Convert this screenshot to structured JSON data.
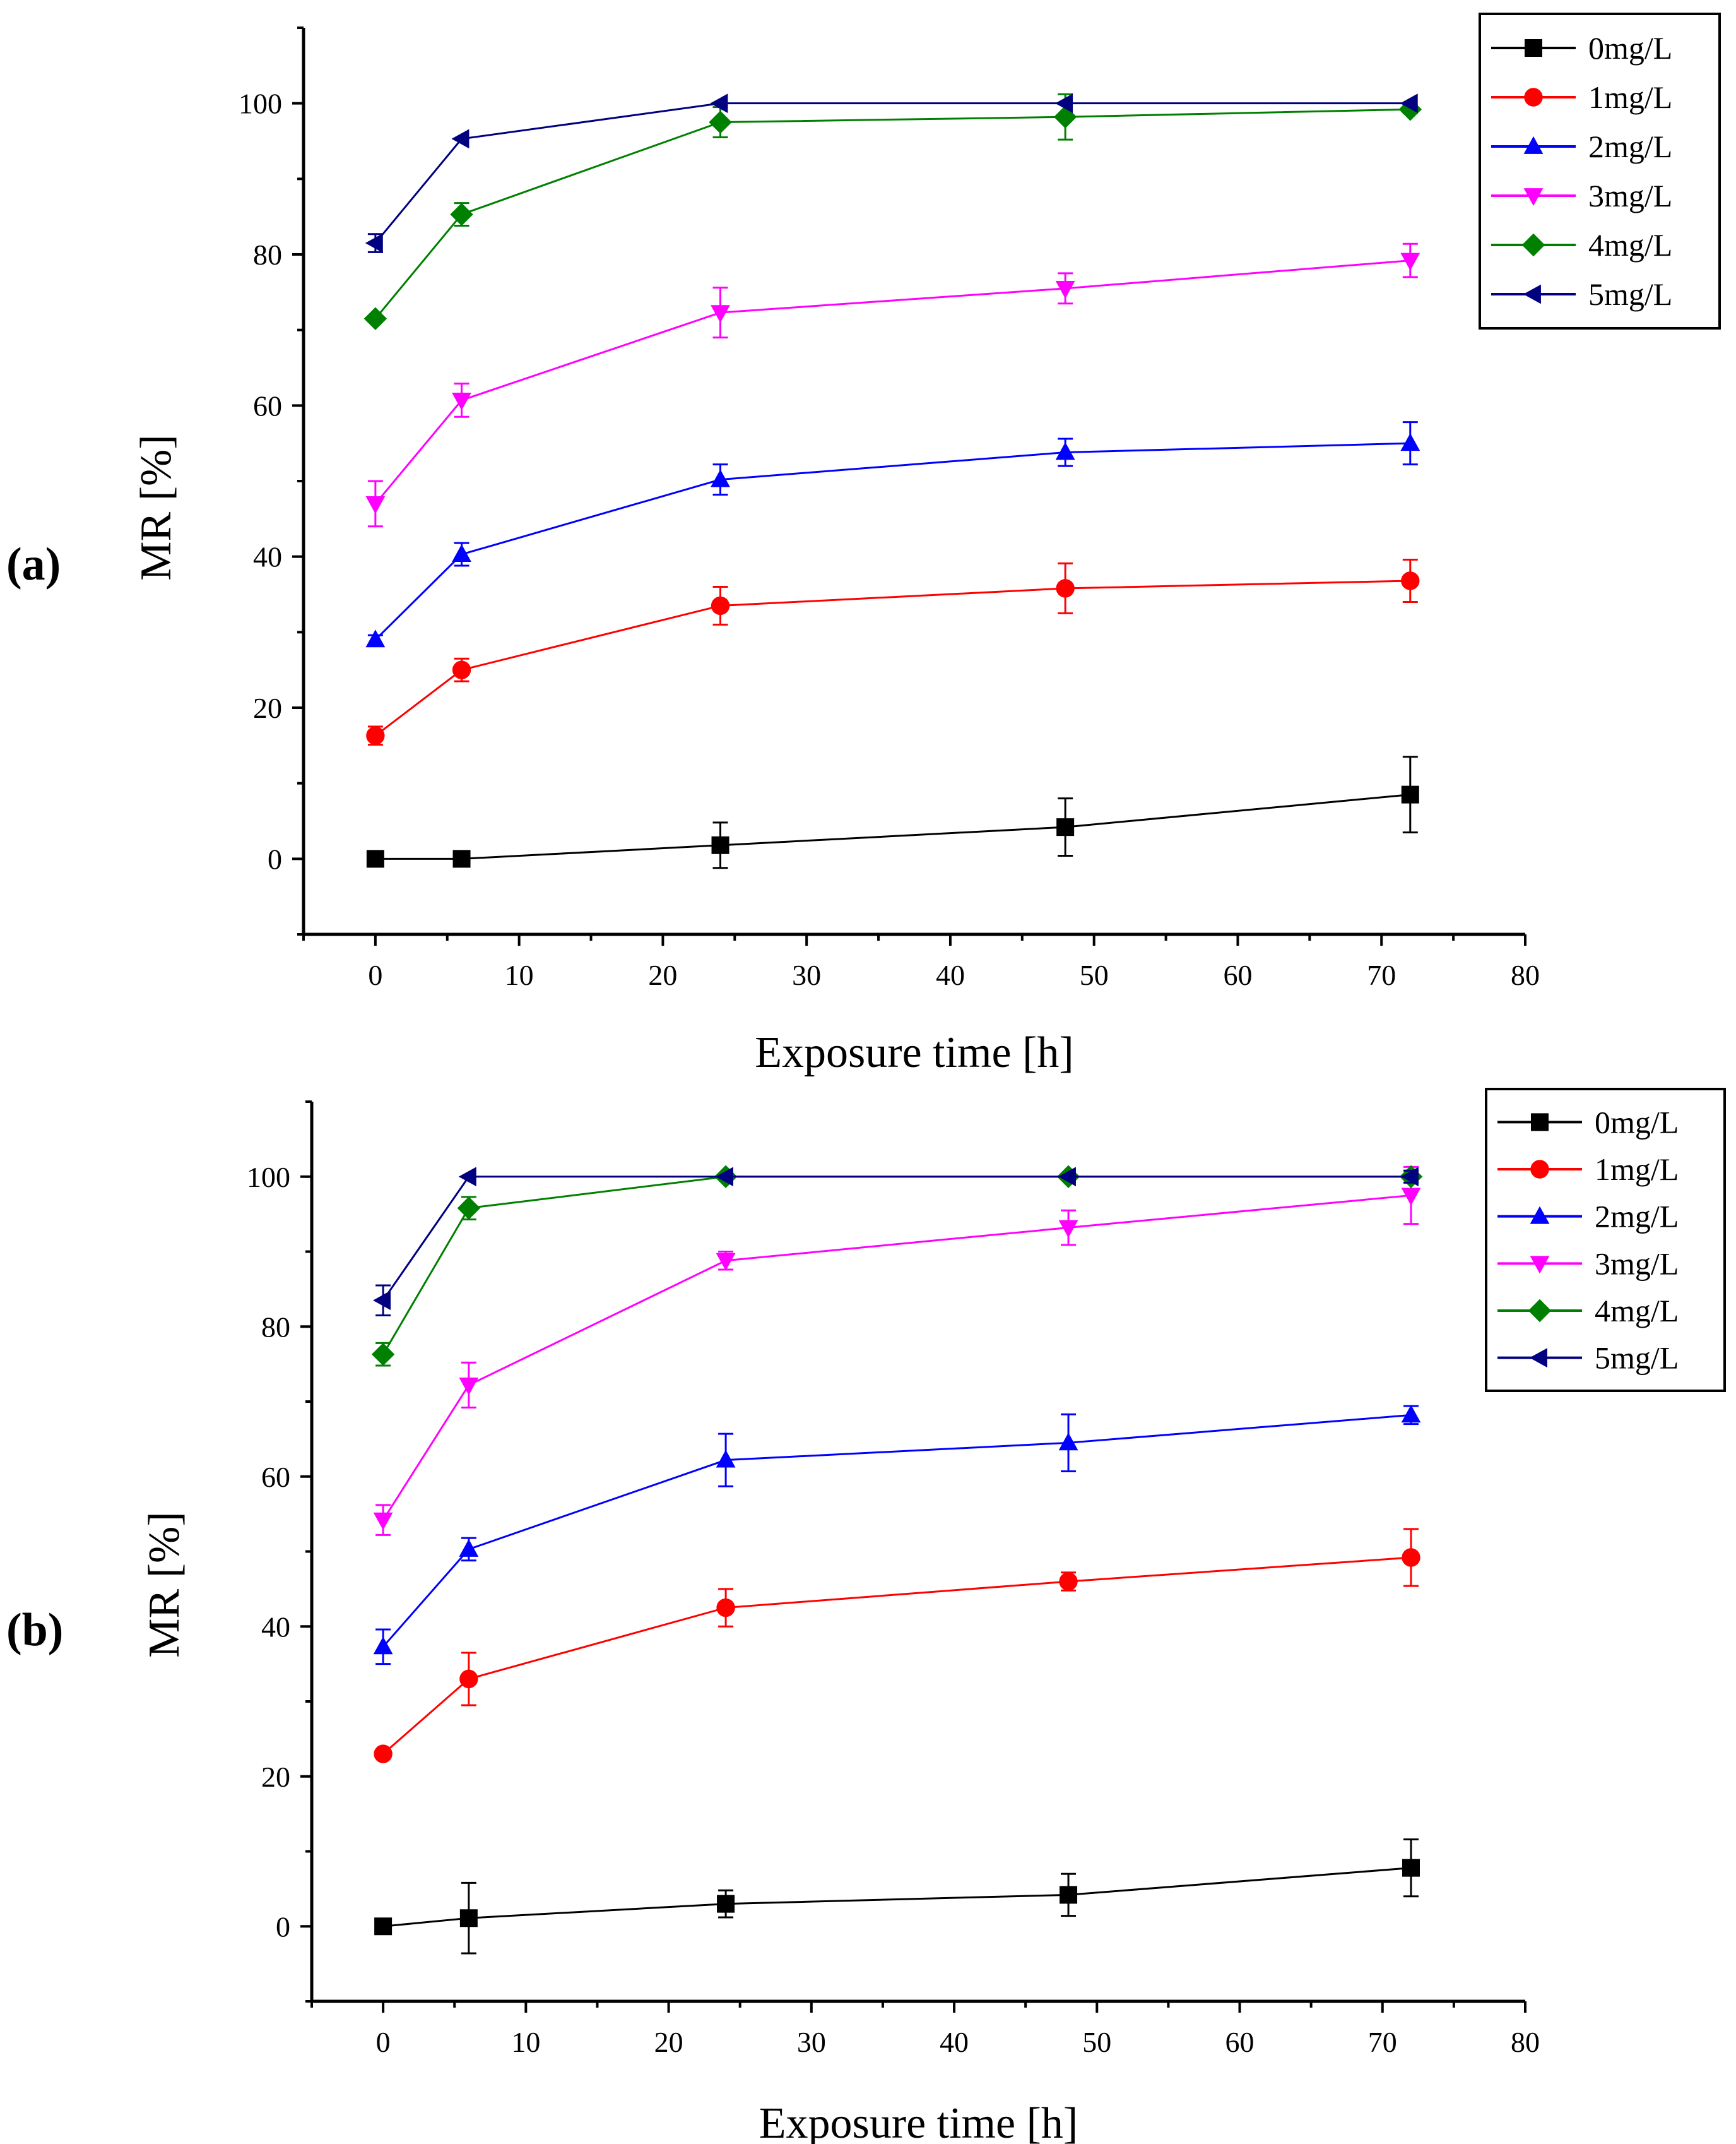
{
  "colors": {
    "axis": "#000000",
    "series": [
      "#000000",
      "#ff0000",
      "#0000ff",
      "#ff00ff",
      "#008000",
      "#000080"
    ]
  },
  "chart_data": [
    {
      "panel_label": "(a)",
      "type": "line",
      "xlabel": "Exposure time [h]",
      "ylabel": "MR [%]",
      "xlim": [
        -5,
        80
      ],
      "ylim": [
        -10,
        110
      ],
      "xticks": [
        0,
        10,
        20,
        30,
        40,
        50,
        60,
        70,
        80
      ],
      "yticks": [
        0,
        20,
        40,
        60,
        80,
        100
      ],
      "legend_position": "top-right",
      "x": [
        0,
        6,
        24,
        48,
        72
      ],
      "series": [
        {
          "name": "0mg/L",
          "marker": "square",
          "values": [
            0,
            0,
            1.8,
            4.2,
            8.5
          ],
          "errors": [
            0,
            0,
            3.0,
            3.8,
            5.0
          ]
        },
        {
          "name": "1mg/L",
          "marker": "circle",
          "values": [
            16.3,
            25,
            33.5,
            35.8,
            36.8
          ],
          "errors": [
            1.2,
            1.5,
            2.5,
            3.3,
            2.8
          ]
        },
        {
          "name": "2mg/L",
          "marker": "triangle-up",
          "values": [
            29,
            40.3,
            50.2,
            53.8,
            55
          ],
          "errors": [
            0.6,
            1.5,
            2.0,
            1.8,
            2.8
          ]
        },
        {
          "name": "3mg/L",
          "marker": "triangle-down",
          "values": [
            47,
            60.7,
            72.3,
            75.5,
            79.2
          ],
          "errors": [
            3.0,
            2.2,
            3.3,
            2.0,
            2.2
          ]
        },
        {
          "name": "4mg/L",
          "marker": "diamond",
          "values": [
            71.5,
            85.3,
            97.5,
            98.2,
            99.2
          ],
          "errors": [
            0,
            1.5,
            2.0,
            3.0,
            0.5
          ]
        },
        {
          "name": "5mg/L",
          "marker": "triangle-left",
          "values": [
            81.5,
            95.3,
            100,
            100,
            100
          ],
          "errors": [
            1.2,
            0,
            0,
            0,
            0
          ]
        }
      ]
    },
    {
      "panel_label": "(b)",
      "type": "line",
      "xlabel": "Exposure time [h]",
      "ylabel": "MR [%]",
      "xlim": [
        -5,
        80
      ],
      "ylim": [
        -10,
        110
      ],
      "xticks": [
        0,
        10,
        20,
        30,
        40,
        50,
        60,
        70,
        80
      ],
      "yticks": [
        0,
        20,
        40,
        60,
        80,
        100
      ],
      "legend_position": "top-right",
      "x": [
        0,
        6,
        24,
        48,
        72
      ],
      "series": [
        {
          "name": "0mg/L",
          "marker": "square",
          "values": [
            0,
            1.1,
            3,
            4.2,
            7.8
          ],
          "errors": [
            0,
            4.7,
            1.8,
            2.8,
            3.8
          ]
        },
        {
          "name": "1mg/L",
          "marker": "circle",
          "values": [
            23,
            33,
            42.5,
            46,
            49.2
          ],
          "errors": [
            0,
            3.5,
            2.5,
            1.2,
            3.8
          ]
        },
        {
          "name": "2mg/L",
          "marker": "triangle-up",
          "values": [
            37.3,
            50.3,
            62.2,
            64.5,
            68.2
          ],
          "errors": [
            2.3,
            1.5,
            3.5,
            3.8,
            1.2
          ]
        },
        {
          "name": "3mg/L",
          "marker": "triangle-down",
          "values": [
            54.2,
            72.2,
            88.8,
            93.2,
            97.5
          ],
          "errors": [
            2.0,
            3.0,
            1.2,
            2.3,
            3.8
          ]
        },
        {
          "name": "4mg/L",
          "marker": "diamond",
          "values": [
            76.3,
            95.8,
            100,
            100,
            100
          ],
          "errors": [
            1.5,
            1.5,
            0,
            0,
            0.8
          ]
        },
        {
          "name": "5mg/L",
          "marker": "triangle-left",
          "values": [
            83.5,
            100,
            100,
            100,
            100
          ],
          "errors": [
            2.0,
            0,
            0,
            0,
            0.8
          ]
        }
      ]
    }
  ]
}
